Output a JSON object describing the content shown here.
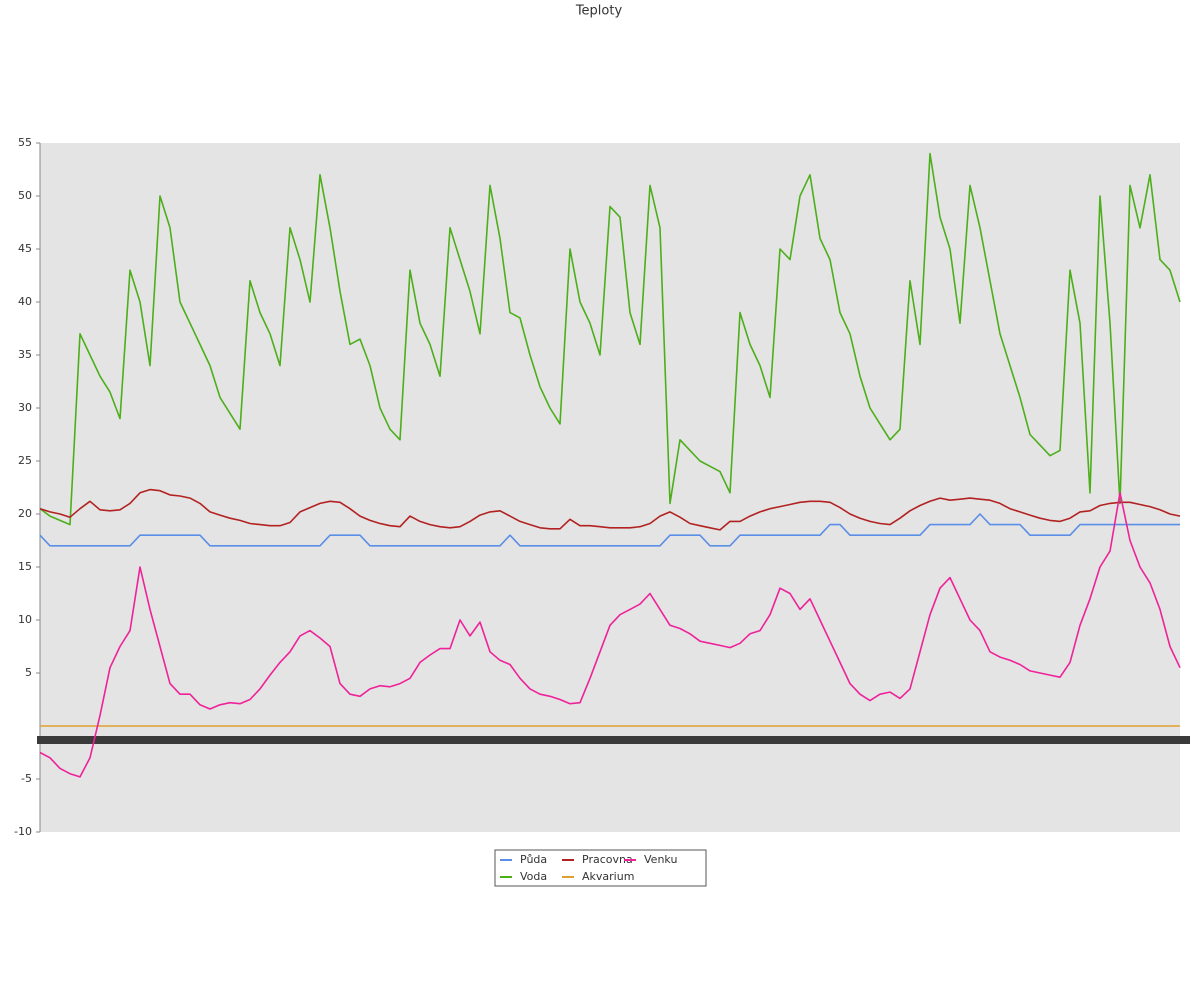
{
  "chart_data": {
    "type": "line",
    "title": "Teploty",
    "categories": [
      null,
      null,
      null,
      null,
      null,
      null,
      null,
      null,
      null,
      null,
      null,
      null,
      null,
      null,
      null,
      null,
      null,
      null,
      null,
      null,
      null,
      null,
      null,
      null,
      null,
      null,
      null,
      null,
      null,
      null,
      null,
      null,
      null,
      null,
      null,
      null,
      null,
      null,
      null,
      null,
      null,
      null,
      null,
      null,
      null,
      null,
      null,
      null,
      null,
      null,
      null,
      null,
      null,
      null,
      null,
      null,
      null,
      null,
      null,
      null,
      null,
      null,
      null,
      null,
      null,
      null,
      null,
      null,
      null,
      null,
      null,
      null,
      null,
      null,
      null,
      null,
      null,
      null,
      null,
      null,
      null,
      null,
      null,
      null,
      null,
      null,
      null,
      null,
      null,
      null,
      null,
      null,
      null,
      null,
      null,
      null,
      null,
      null,
      null,
      null,
      null,
      null,
      null,
      null,
      null,
      null,
      null,
      null,
      null,
      null,
      null,
      null,
      null,
      null,
      null
    ],
    "ylim": [
      -10,
      55
    ],
    "yticks": [
      55,
      50,
      45,
      40,
      35,
      30,
      25,
      20,
      15,
      10,
      5,
      -5,
      -10
    ],
    "series": [
      {
        "name": "Půda",
        "color": "#5b8ee6",
        "values": [
          18,
          17,
          17,
          17,
          17,
          17,
          17,
          17,
          17,
          17,
          18,
          18,
          18,
          18,
          18,
          18,
          18,
          17,
          17,
          17,
          17,
          17,
          17,
          17,
          17,
          17,
          17,
          17,
          17,
          18,
          18,
          18,
          18,
          17,
          17,
          17,
          17,
          17,
          17,
          17,
          17,
          17,
          17,
          17,
          17,
          17,
          17,
          18,
          17,
          17,
          17,
          17,
          17,
          17,
          17,
          17,
          17,
          17,
          17,
          17,
          17,
          17,
          17,
          18,
          18,
          18,
          18,
          17,
          17,
          17,
          18,
          18,
          18,
          18,
          18,
          18,
          18,
          18,
          18,
          19,
          19,
          18,
          18,
          18,
          18,
          18,
          18,
          18,
          18,
          19,
          19,
          19,
          19,
          19,
          20,
          19,
          19,
          19,
          19,
          18,
          18,
          18,
          18,
          18,
          19,
          19,
          19,
          19,
          19,
          19,
          19,
          19,
          19,
          19,
          19
        ]
      },
      {
        "name": "Voda",
        "color": "#4caf1a",
        "values": [
          20.5,
          19.8,
          19.4,
          19.0,
          37,
          35,
          33,
          31.5,
          29,
          43,
          40,
          34,
          50,
          47,
          40,
          38,
          36,
          34,
          31,
          29.5,
          28,
          42,
          39,
          37,
          34,
          47,
          44,
          40,
          52,
          47,
          41,
          36,
          36.5,
          34,
          30,
          28,
          27,
          43,
          38,
          36,
          33,
          47,
          44,
          41,
          37,
          51,
          46,
          39,
          38.5,
          35,
          32,
          30,
          28.5,
          45,
          40,
          38,
          35,
          49,
          48,
          39,
          36,
          51,
          47,
          21,
          27,
          26,
          25,
          24.5,
          24,
          22,
          39,
          36,
          34,
          31,
          45,
          44,
          50,
          52,
          46,
          44,
          39,
          37,
          33,
          30,
          28.5,
          27,
          28,
          42,
          36,
          54,
          48,
          45,
          38,
          51,
          47,
          42,
          37,
          34,
          31,
          27.5,
          26.5,
          25.5,
          26,
          43,
          38,
          22,
          50,
          38,
          21,
          51,
          47,
          52,
          44,
          43,
          40
        ]
      },
      {
        "name": "Pracovna",
        "color": "#b22222",
        "values": [
          20.5,
          20.2,
          20,
          19.7,
          20.5,
          21.2,
          20.4,
          20.3,
          20.4,
          21,
          22,
          22.3,
          22.2,
          21.8,
          21.7,
          21.5,
          21,
          20.2,
          19.9,
          19.6,
          19.4,
          19.1,
          19.0,
          18.9,
          18.9,
          19.2,
          20.2,
          20.6,
          21,
          21.2,
          21.1,
          20.5,
          19.8,
          19.4,
          19.1,
          18.9,
          18.8,
          19.8,
          19.3,
          19.0,
          18.8,
          18.7,
          18.8,
          19.3,
          19.9,
          20.2,
          20.3,
          19.8,
          19.3,
          19.0,
          18.7,
          18.6,
          18.6,
          19.5,
          18.9,
          18.9,
          18.8,
          18.7,
          18.7,
          18.7,
          18.8,
          19.1,
          19.8,
          20.2,
          19.7,
          19.1,
          18.9,
          18.7,
          18.5,
          19.3,
          19.3,
          19.8,
          20.2,
          20.5,
          20.7,
          20.9,
          21.1,
          21.2,
          21.2,
          21.1,
          20.6,
          20.0,
          19.6,
          19.3,
          19.1,
          19.0,
          19.6,
          20.3,
          20.8,
          21.2,
          21.5,
          21.3,
          21.4,
          21.5,
          21.4,
          21.3,
          21.0,
          20.5,
          20.2,
          19.9,
          19.6,
          19.4,
          19.3,
          19.6,
          20.2,
          20.3,
          20.8,
          21,
          21.1,
          21.1,
          20.9,
          20.7,
          20.4,
          20.0,
          19.8
        ]
      },
      {
        "name": "Akvarium",
        "color": "#e0a030",
        "values": [
          0,
          0,
          0,
          0,
          0,
          0,
          0,
          0,
          0,
          0,
          0,
          0,
          0,
          0,
          0,
          0,
          0,
          0,
          0,
          0,
          0,
          0,
          0,
          0,
          0,
          0,
          0,
          0,
          0,
          0,
          0,
          0,
          0,
          0,
          0,
          0,
          0,
          0,
          0,
          0,
          0,
          0,
          0,
          0,
          0,
          0,
          0,
          0,
          0,
          0,
          0,
          0,
          0,
          0,
          0,
          0,
          0,
          0,
          0,
          0,
          0,
          0,
          0,
          0,
          0,
          0,
          0,
          0,
          0,
          0,
          0,
          0,
          0,
          0,
          0,
          0,
          0,
          0,
          0,
          0,
          0,
          0,
          0,
          0,
          0,
          0,
          0,
          0,
          0,
          0,
          0,
          0,
          0,
          0,
          0,
          0,
          0,
          0,
          0,
          0,
          0,
          0,
          0,
          0,
          0,
          0,
          0,
          0,
          0,
          0,
          0,
          0,
          0,
          0,
          0
        ]
      },
      {
        "name": "Venku",
        "color": "#ee2299",
        "values": [
          -2.5,
          -3,
          -4,
          -4.5,
          -4.8,
          -3,
          1,
          5.5,
          7.5,
          9,
          15,
          11,
          7.5,
          4,
          3,
          3,
          2,
          1.6,
          2,
          2.2,
          2.1,
          2.5,
          3.5,
          4.8,
          6,
          7,
          8.5,
          9,
          8.3,
          7.5,
          4,
          3,
          2.8,
          3.5,
          3.8,
          3.7,
          4,
          4.5,
          6,
          6.7,
          7.3,
          7.3,
          10,
          8.5,
          9.8,
          7,
          6.2,
          5.8,
          4.5,
          3.5,
          3,
          2.8,
          2.5,
          2.1,
          2.2,
          4.5,
          7,
          9.5,
          10.5,
          11,
          11.5,
          12.5,
          11,
          9.5,
          9.2,
          8.7,
          8,
          7.8,
          7.6,
          7.4,
          7.8,
          8.7,
          9,
          10.5,
          13,
          12.5,
          11,
          12,
          10,
          8,
          6,
          4,
          3,
          2.4,
          3,
          3.2,
          2.6,
          3.5,
          7,
          10.5,
          13,
          14,
          12,
          10,
          9,
          7,
          6.5,
          6.2,
          5.8,
          5.2,
          5,
          4.8,
          4.6,
          6,
          9.5,
          12,
          15,
          16.5,
          22,
          17.5,
          15,
          13.5,
          11,
          7.5,
          5.5
        ]
      }
    ]
  }
}
